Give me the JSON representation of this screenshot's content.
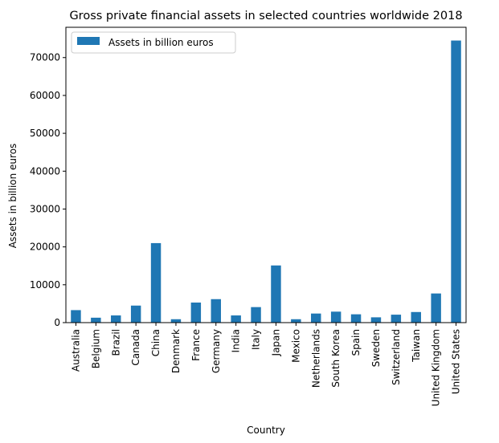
{
  "chart_data": {
    "type": "bar",
    "title": "Gross private financial assets in selected countries worldwide 2018",
    "xlabel": "Country",
    "ylabel": "Assets in billion euros",
    "categories": [
      "Australia",
      "Belgium",
      "Brazil",
      "Canada",
      "China",
      "Denmark",
      "France",
      "Germany",
      "India",
      "Italy",
      "Japan",
      "Mexico",
      "Netherlands",
      "South Korea",
      "Spain",
      "Sweden",
      "Switzerland",
      "Taiwan",
      "United Kingdom",
      "United States"
    ],
    "series": [
      {
        "name": "Assets in billion euros",
        "values": [
          3300,
          1300,
          1900,
          4500,
          21000,
          900,
          5300,
          6200,
          1900,
          4100,
          15100,
          900,
          2400,
          2900,
          2200,
          1400,
          2100,
          2800,
          7700,
          74500
        ],
        "color": "#1f77b4"
      }
    ],
    "ylim": [
      0,
      78000
    ],
    "yticks": [
      0,
      10000,
      20000,
      30000,
      40000,
      50000,
      60000,
      70000
    ],
    "grid": false,
    "legend_position": "top-left"
  }
}
